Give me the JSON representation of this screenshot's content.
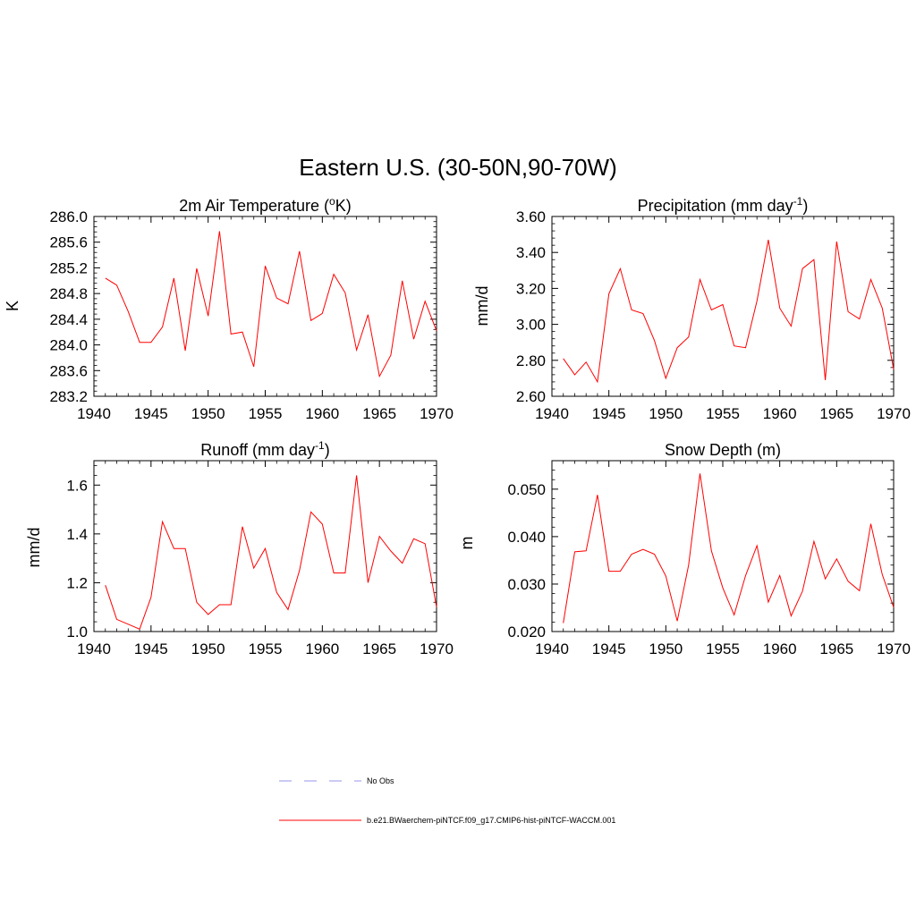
{
  "main_title": "Eastern U.S. (30-50N,90-70W)",
  "legend": {
    "obs_label": "No Obs",
    "model_label": "b.e21.BWaerchem-piNTCF.f09_g17.CMIP6-hist-piNTCF-WACCM.001",
    "obs_color": "#aaaaee",
    "model_color": "#ff0000"
  },
  "chart_data": [
    {
      "type": "line",
      "title_main": "2m Air Temperature (",
      "title_sup": "o",
      "title_end": "K)",
      "ylabel": "K",
      "xlim": [
        1940,
        1970
      ],
      "ylim": [
        283.2,
        286.0
      ],
      "xticks": [
        "1940",
        "1945",
        "1950",
        "1955",
        "1960",
        "1965",
        "1970"
      ],
      "yticks": [
        "283.2",
        "283.6",
        "284.0",
        "284.4",
        "284.8",
        "285.2",
        "285.6",
        "286.0"
      ],
      "x": [
        1941,
        1942,
        1943,
        1944,
        1945,
        1946,
        1947,
        1948,
        1949,
        1950,
        1951,
        1952,
        1953,
        1954,
        1955,
        1956,
        1957,
        1958,
        1959,
        1960,
        1961,
        1962,
        1963,
        1964,
        1965,
        1966,
        1967,
        1968,
        1969,
        1970
      ],
      "values": [
        285.04,
        284.93,
        284.52,
        284.04,
        284.04,
        284.28,
        285.04,
        283.91,
        285.19,
        284.45,
        285.77,
        284.17,
        284.2,
        283.66,
        285.23,
        284.73,
        284.64,
        285.46,
        284.38,
        284.49,
        285.1,
        284.81,
        283.92,
        284.47,
        283.51,
        283.84,
        285.0,
        284.09,
        284.68,
        284.22
      ],
      "series": [
        {
          "name": "b.e21.BWaerchem-piNTCF.f09_g17.CMIP6-hist-piNTCF-WACCM.001"
        }
      ]
    },
    {
      "type": "line",
      "title_main": "Precipitation (mm day",
      "title_sup": "-1",
      "title_end": ")",
      "ylabel": "mm/d",
      "xlim": [
        1940,
        1970
      ],
      "ylim": [
        2.6,
        3.6
      ],
      "xticks": [
        "1940",
        "1945",
        "1950",
        "1955",
        "1960",
        "1965",
        "1970"
      ],
      "yticks": [
        "2.60",
        "2.80",
        "3.00",
        "3.20",
        "3.40",
        "3.60"
      ],
      "x": [
        1941,
        1942,
        1943,
        1944,
        1945,
        1946,
        1947,
        1948,
        1949,
        1950,
        1951,
        1952,
        1953,
        1954,
        1955,
        1956,
        1957,
        1958,
        1959,
        1960,
        1961,
        1962,
        1963,
        1964,
        1965,
        1966,
        1967,
        1968,
        1969,
        1970
      ],
      "values": [
        2.81,
        2.72,
        2.79,
        2.68,
        3.17,
        3.31,
        3.08,
        3.06,
        2.91,
        2.7,
        2.87,
        2.93,
        3.25,
        3.08,
        3.11,
        2.88,
        2.87,
        3.13,
        3.47,
        3.09,
        2.99,
        3.31,
        3.36,
        2.69,
        3.46,
        3.07,
        3.03,
        3.25,
        3.09,
        2.75
      ],
      "series": [
        {
          "name": "b.e21.BWaerchem-piNTCF.f09_g17.CMIP6-hist-piNTCF-WACCM.001"
        }
      ]
    },
    {
      "type": "line",
      "title_main": "Runoff (mm day",
      "title_sup": "-1",
      "title_end": ")",
      "ylabel": "mm/d",
      "xlim": [
        1940,
        1970
      ],
      "ylim": [
        1.0,
        1.7
      ],
      "xticks": [
        "1940",
        "1945",
        "1950",
        "1955",
        "1960",
        "1965",
        "1970"
      ],
      "yticks": [
        "1.0",
        "1.2",
        "1.4",
        "1.6"
      ],
      "x": [
        1941,
        1942,
        1943,
        1944,
        1945,
        1946,
        1947,
        1948,
        1949,
        1950,
        1951,
        1952,
        1953,
        1954,
        1955,
        1956,
        1957,
        1958,
        1959,
        1960,
        1961,
        1962,
        1963,
        1964,
        1965,
        1966,
        1967,
        1968,
        1969,
        1970
      ],
      "values": [
        1.19,
        1.05,
        1.03,
        1.01,
        1.14,
        1.45,
        1.34,
        1.34,
        1.12,
        1.07,
        1.11,
        1.11,
        1.43,
        1.26,
        1.34,
        1.16,
        1.09,
        1.25,
        1.49,
        1.44,
        1.24,
        1.24,
        1.64,
        1.2,
        1.39,
        1.33,
        1.28,
        1.38,
        1.36,
        1.1
      ],
      "series": [
        {
          "name": "b.e21.BWaerchem-piNTCF.f09_g17.CMIP6-hist-piNTCF-WACCM.001"
        }
      ]
    },
    {
      "type": "line",
      "title_main": "Snow Depth (m)",
      "title_sup": "",
      "title_end": "",
      "ylabel": "m",
      "xlim": [
        1940,
        1970
      ],
      "ylim": [
        0.02,
        0.056
      ],
      "xticks": [
        "1940",
        "1945",
        "1950",
        "1955",
        "1960",
        "1965",
        "1970"
      ],
      "yticks": [
        "0.020",
        "0.030",
        "0.040",
        "0.050"
      ],
      "x": [
        1941,
        1942,
        1943,
        1944,
        1945,
        1946,
        1947,
        1948,
        1949,
        1950,
        1951,
        1952,
        1953,
        1954,
        1955,
        1956,
        1957,
        1958,
        1959,
        1960,
        1961,
        1962,
        1963,
        1964,
        1965,
        1966,
        1967,
        1968,
        1969,
        1970
      ],
      "values": [
        0.0218,
        0.0368,
        0.037,
        0.0488,
        0.0327,
        0.0327,
        0.0363,
        0.0373,
        0.0363,
        0.0317,
        0.0222,
        0.034,
        0.0533,
        0.037,
        0.0292,
        0.0235,
        0.0318,
        0.0381,
        0.0262,
        0.0318,
        0.0233,
        0.0285,
        0.039,
        0.0311,
        0.0353,
        0.0306,
        0.0286,
        0.0427,
        0.032,
        0.0251
      ],
      "series": [
        {
          "name": "b.e21.BWaerchem-piNTCF.f09_g17.CMIP6-hist-piNTCF-WACCM.001"
        }
      ]
    }
  ]
}
